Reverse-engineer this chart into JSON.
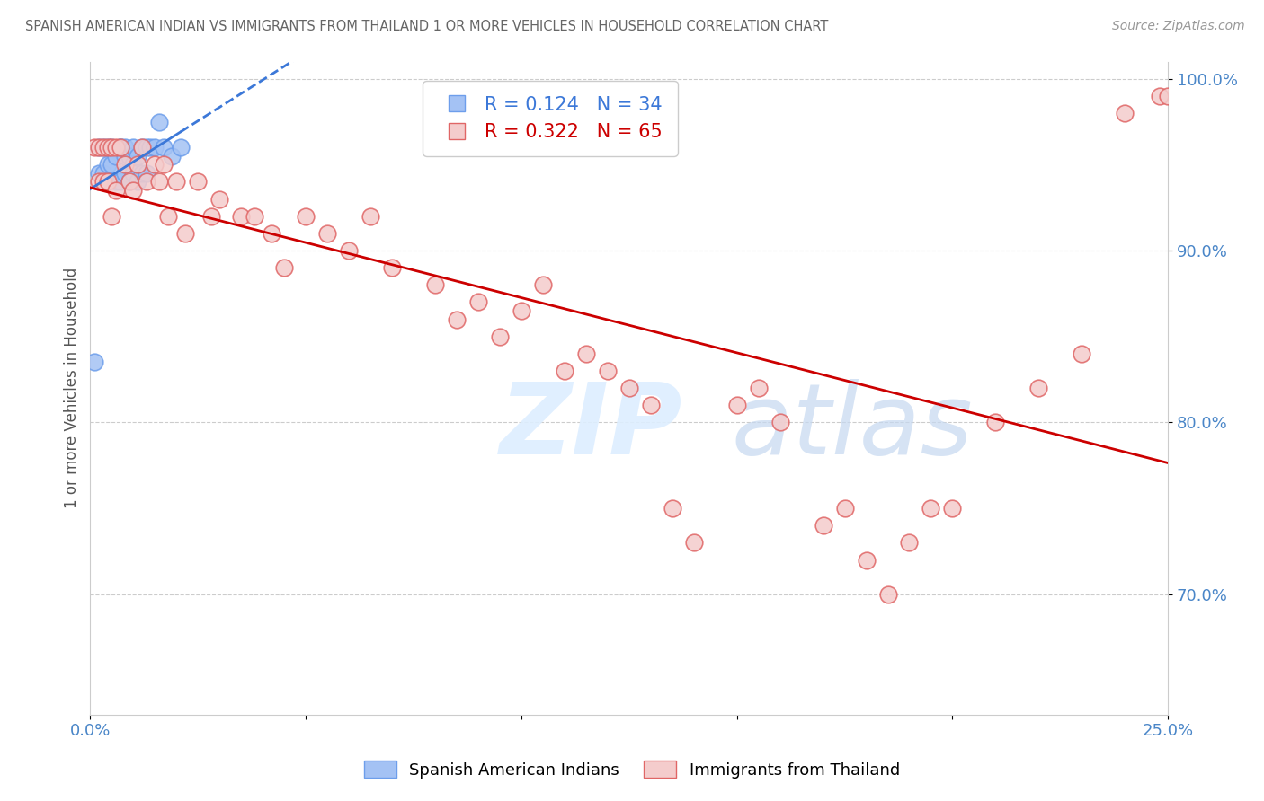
{
  "title": "SPANISH AMERICAN INDIAN VS IMMIGRANTS FROM THAILAND 1 OR MORE VEHICLES IN HOUSEHOLD CORRELATION CHART",
  "source": "Source: ZipAtlas.com",
  "ylabel": "1 or more Vehicles in Household",
  "legend_r1": "R = 0.124",
  "legend_n1": "N = 34",
  "legend_r2": "R = 0.322",
  "legend_n2": "N = 65",
  "legend_label1": "Spanish American Indians",
  "legend_label2": "Immigrants from Thailand",
  "blue_color": "#a4c2f4",
  "pink_color": "#f4cccc",
  "blue_edge_color": "#6d9eeb",
  "pink_edge_color": "#e06666",
  "blue_line_color": "#3c78d8",
  "pink_line_color": "#cc0000",
  "axis_color": "#4a86c8",
  "title_color": "#666666",
  "grid_color": "#cccccc",
  "blue_scatter_x": [
    0.001,
    0.002,
    0.002,
    0.003,
    0.003,
    0.004,
    0.004,
    0.005,
    0.005,
    0.006,
    0.006,
    0.007,
    0.007,
    0.007,
    0.008,
    0.008,
    0.008,
    0.009,
    0.009,
    0.01,
    0.01,
    0.01,
    0.011,
    0.011,
    0.012,
    0.012,
    0.013,
    0.013,
    0.014,
    0.015,
    0.016,
    0.017,
    0.019,
    0.021
  ],
  "blue_scatter_y": [
    0.835,
    0.96,
    0.945,
    0.96,
    0.945,
    0.96,
    0.95,
    0.96,
    0.95,
    0.955,
    0.94,
    0.96,
    0.94,
    0.96,
    0.955,
    0.945,
    0.96,
    0.94,
    0.955,
    0.95,
    0.945,
    0.96,
    0.94,
    0.955,
    0.96,
    0.945,
    0.96,
    0.945,
    0.96,
    0.96,
    0.975,
    0.96,
    0.955,
    0.96
  ],
  "pink_scatter_x": [
    0.001,
    0.002,
    0.002,
    0.003,
    0.003,
    0.004,
    0.004,
    0.005,
    0.005,
    0.006,
    0.006,
    0.007,
    0.008,
    0.009,
    0.01,
    0.011,
    0.012,
    0.013,
    0.015,
    0.016,
    0.017,
    0.018,
    0.02,
    0.022,
    0.025,
    0.028,
    0.03,
    0.035,
    0.038,
    0.042,
    0.045,
    0.05,
    0.055,
    0.06,
    0.065,
    0.07,
    0.08,
    0.085,
    0.09,
    0.095,
    0.1,
    0.105,
    0.11,
    0.115,
    0.12,
    0.125,
    0.13,
    0.135,
    0.14,
    0.15,
    0.155,
    0.16,
    0.17,
    0.175,
    0.18,
    0.185,
    0.19,
    0.195,
    0.2,
    0.21,
    0.22,
    0.23,
    0.24,
    0.248,
    0.25
  ],
  "pink_scatter_y": [
    0.96,
    0.96,
    0.94,
    0.96,
    0.94,
    0.96,
    0.94,
    0.96,
    0.92,
    0.96,
    0.935,
    0.96,
    0.95,
    0.94,
    0.935,
    0.95,
    0.96,
    0.94,
    0.95,
    0.94,
    0.95,
    0.92,
    0.94,
    0.91,
    0.94,
    0.92,
    0.93,
    0.92,
    0.92,
    0.91,
    0.89,
    0.92,
    0.91,
    0.9,
    0.92,
    0.89,
    0.88,
    0.86,
    0.87,
    0.85,
    0.865,
    0.88,
    0.83,
    0.84,
    0.83,
    0.82,
    0.81,
    0.75,
    0.73,
    0.81,
    0.82,
    0.8,
    0.74,
    0.75,
    0.72,
    0.7,
    0.73,
    0.75,
    0.75,
    0.8,
    0.82,
    0.84,
    0.98,
    0.99,
    0.99
  ],
  "xlim": [
    0.0,
    0.25
  ],
  "ylim": [
    0.63,
    1.01
  ],
  "yticks": [
    1.0,
    0.9,
    0.8,
    0.7
  ],
  "ytick_labels": [
    "100.0%",
    "90.0%",
    "80.0%",
    "70.0%"
  ],
  "xtick_positions": [
    0.0,
    0.05,
    0.1,
    0.15,
    0.2,
    0.25
  ],
  "xtick_labels": [
    "0.0%",
    "",
    "",
    "",
    "",
    "25.0%"
  ],
  "blue_trend_start_x": 0.0,
  "blue_trend_end_x": 0.021,
  "blue_trend_end_dashed_x": 0.25,
  "pink_trend_start_x": 0.0,
  "pink_trend_end_x": 0.25
}
